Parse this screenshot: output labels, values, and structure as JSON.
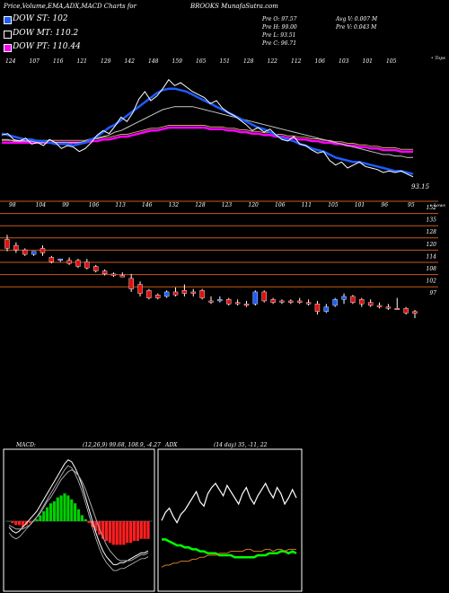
{
  "header": {
    "left_title": "Price,Volume,EMA,ADX,MACD Charts for",
    "center_title": "BROOKS MunafaSutra.com"
  },
  "legend": [
    {
      "label": "DOW ST: 102",
      "color": "#1e5cff"
    },
    {
      "label": "DOW MT: 110.2",
      "color": "#000000"
    },
    {
      "label": "DOW PT: 110.44",
      "color": "#ff00ff"
    }
  ],
  "quote": {
    "open": "Pre   O: 97.57",
    "high": "Pre   H: 99.00",
    "low": "Pre   L: 93.51",
    "close": "Pre   C: 96.71",
    "avg_vol": "Avg V: 0.007 M",
    "pre_vol": "Pre   V: 0.043 M"
  },
  "chart_data": [
    {
      "type": "line",
      "name": "price-ema-panel",
      "top_tick_labels": [
        "124",
        "107",
        "116",
        "121",
        "129",
        "142",
        "148",
        "159",
        "165",
        "151",
        "128",
        "122",
        "112",
        "106",
        "103",
        "101",
        "105"
      ],
      "bottom_tick_labels": [
        "98",
        "104",
        "99",
        "106",
        "113",
        "146",
        "132",
        "128",
        "123",
        "120",
        "106",
        "111",
        "105",
        "101",
        "96",
        "95"
      ],
      "corner_top": "• Tops",
      "corner_bottom": "• Lows",
      "last_price_label": "93.15",
      "close": [
        121,
        122,
        118,
        117,
        119,
        115,
        116,
        114,
        118,
        116,
        112,
        114,
        113,
        110,
        112,
        116,
        121,
        124,
        122,
        127,
        133,
        130,
        136,
        145,
        150,
        144,
        147,
        152,
        158,
        154,
        156,
        153,
        150,
        148,
        146,
        142,
        144,
        139,
        136,
        134,
        131,
        128,
        124,
        126,
        123,
        125,
        121,
        118,
        117,
        120,
        115,
        114,
        111,
        109,
        110,
        104,
        101,
        103,
        99,
        101,
        103,
        100,
        99,
        98,
        96,
        97,
        96,
        97,
        95,
        93.15
      ],
      "ema_short": [
        122,
        121,
        120,
        119,
        118,
        118,
        117,
        117,
        116,
        115,
        115,
        115,
        114,
        115,
        116,
        118,
        120,
        123,
        126,
        128,
        131,
        134,
        137,
        140,
        143,
        146,
        149,
        151,
        152,
        152,
        151,
        150,
        148,
        146,
        144,
        142,
        140,
        138,
        136,
        134,
        132,
        130,
        128,
        126,
        125,
        123,
        121,
        119,
        118,
        117,
        115,
        114,
        112,
        111,
        110,
        108,
        106,
        105,
        104,
        103,
        103,
        102,
        101,
        100,
        99,
        98,
        97,
        97,
        96,
        95
      ],
      "ema_mid": [
        118,
        118,
        117,
        117,
        117,
        117,
        116,
        116,
        116,
        116,
        116,
        116,
        116,
        116,
        117,
        118,
        119,
        120,
        121,
        123,
        124,
        126,
        128,
        130,
        132,
        134,
        136,
        138,
        139,
        140,
        140,
        140,
        140,
        139,
        138,
        137,
        136,
        135,
        134,
        133,
        132,
        131,
        130,
        129,
        128,
        127,
        126,
        125,
        124,
        123,
        122,
        121,
        120,
        119,
        118,
        117,
        116,
        115,
        114,
        113,
        112,
        111,
        110,
        109,
        108,
        108,
        107,
        107,
        106,
        106
      ],
      "ema_long": [
        116,
        116,
        116,
        116,
        116,
        116,
        116,
        116,
        116,
        116,
        116,
        116,
        116,
        116,
        116,
        117,
        117,
        118,
        118,
        119,
        120,
        120,
        121,
        122,
        123,
        124,
        124,
        125,
        126,
        126,
        126,
        126,
        126,
        126,
        126,
        125,
        125,
        125,
        124,
        124,
        123,
        123,
        122,
        122,
        121,
        121,
        120,
        120,
        119,
        119,
        118,
        118,
        117,
        117,
        116,
        116,
        115,
        115,
        114,
        114,
        113,
        113,
        112,
        112,
        111,
        111,
        111,
        110,
        110,
        110
      ]
    },
    {
      "type": "candlestick",
      "name": "candle-panel",
      "ylim": [
        93,
        160
      ],
      "price_levels": [
        "152",
        "135",
        "128",
        "120",
        "114",
        "108",
        "102",
        "97"
      ],
      "candles": [
        {
          "o": 146,
          "h": 149,
          "l": 138,
          "c": 140,
          "up": false
        },
        {
          "o": 142,
          "h": 144,
          "l": 137,
          "c": 139,
          "up": false
        },
        {
          "o": 139,
          "h": 140,
          "l": 135,
          "c": 136,
          "up": false
        },
        {
          "o": 136,
          "h": 138,
          "l": 135,
          "c": 138,
          "up": true
        },
        {
          "o": 140,
          "h": 142,
          "l": 135,
          "c": 137,
          "up": false
        },
        {
          "o": 134,
          "h": 135,
          "l": 130,
          "c": 131,
          "up": false
        },
        {
          "o": 132,
          "h": 133,
          "l": 131,
          "c": 133,
          "up": true
        },
        {
          "o": 132,
          "h": 134,
          "l": 129,
          "c": 130,
          "up": false
        },
        {
          "o": 132,
          "h": 133,
          "l": 127,
          "c": 128,
          "up": false
        },
        {
          "o": 131,
          "h": 133,
          "l": 126,
          "c": 127,
          "up": false
        },
        {
          "o": 128,
          "h": 129,
          "l": 124,
          "c": 125,
          "up": false
        },
        {
          "o": 125,
          "h": 126,
          "l": 122,
          "c": 123,
          "up": false
        },
        {
          "o": 123,
          "h": 124,
          "l": 121,
          "c": 122,
          "up": false
        },
        {
          "o": 122,
          "h": 124,
          "l": 121,
          "c": 121,
          "up": false
        },
        {
          "o": 120,
          "h": 123,
          "l": 111,
          "c": 113,
          "up": false
        },
        {
          "o": 116,
          "h": 118,
          "l": 108,
          "c": 110,
          "up": false
        },
        {
          "o": 112,
          "h": 113,
          "l": 106,
          "c": 107,
          "up": false
        },
        {
          "o": 109,
          "h": 110,
          "l": 106,
          "c": 107,
          "up": false
        },
        {
          "o": 108,
          "h": 112,
          "l": 107,
          "c": 111,
          "up": true
        },
        {
          "o": 111,
          "h": 114,
          "l": 108,
          "c": 109,
          "up": false
        },
        {
          "o": 112,
          "h": 116,
          "l": 108,
          "c": 110,
          "up": false
        },
        {
          "o": 111,
          "h": 113,
          "l": 108,
          "c": 110,
          "up": false
        },
        {
          "o": 112,
          "h": 113,
          "l": 106,
          "c": 107,
          "up": false
        },
        {
          "o": 105,
          "h": 108,
          "l": 103,
          "c": 105,
          "up": false
        },
        {
          "o": 105,
          "h": 108,
          "l": 104,
          "c": 106,
          "up": true
        },
        {
          "o": 106,
          "h": 107,
          "l": 102,
          "c": 103,
          "up": false
        },
        {
          "o": 104,
          "h": 106,
          "l": 102,
          "c": 104,
          "up": false
        },
        {
          "o": 103,
          "h": 105,
          "l": 101,
          "c": 102,
          "up": false
        },
        {
          "o": 103,
          "h": 112,
          "l": 102,
          "c": 111,
          "up": true
        },
        {
          "o": 111,
          "h": 112,
          "l": 104,
          "c": 105,
          "up": false
        },
        {
          "o": 106,
          "h": 107,
          "l": 103,
          "c": 104,
          "up": false
        },
        {
          "o": 105,
          "h": 106,
          "l": 103,
          "c": 105,
          "up": false
        },
        {
          "o": 105,
          "h": 106,
          "l": 103,
          "c": 104,
          "up": false
        },
        {
          "o": 105,
          "h": 107,
          "l": 103,
          "c": 104,
          "up": false
        },
        {
          "o": 104,
          "h": 106,
          "l": 102,
          "c": 103,
          "up": false
        },
        {
          "o": 103,
          "h": 105,
          "l": 96,
          "c": 98,
          "up": false
        },
        {
          "o": 98,
          "h": 103,
          "l": 97,
          "c": 101,
          "up": true
        },
        {
          "o": 102,
          "h": 107,
          "l": 101,
          "c": 106,
          "up": true
        },
        {
          "o": 106,
          "h": 110,
          "l": 103,
          "c": 108,
          "up": true
        },
        {
          "o": 108,
          "h": 109,
          "l": 103,
          "c": 104,
          "up": false
        },
        {
          "o": 106,
          "h": 107,
          "l": 101,
          "c": 103,
          "up": false
        },
        {
          "o": 104,
          "h": 106,
          "l": 101,
          "c": 102,
          "up": false
        },
        {
          "o": 102,
          "h": 104,
          "l": 100,
          "c": 101,
          "up": false
        },
        {
          "o": 101,
          "h": 103,
          "l": 99,
          "c": 100,
          "up": false
        },
        {
          "o": 100,
          "h": 107,
          "l": 99,
          "c": 100,
          "up": false
        },
        {
          "o": 100,
          "h": 101,
          "l": 96,
          "c": 97,
          "up": false
        },
        {
          "o": 98,
          "h": 99,
          "l": 93.5,
          "c": 96.7,
          "up": false
        }
      ]
    },
    {
      "type": "bar",
      "name": "macd-panel",
      "label": "MACD:",
      "params": "(12,26,9) 99.68, 108.9, -4.27",
      "histogram": [
        0,
        -1,
        -2,
        -2,
        -3,
        -2,
        -1,
        0,
        1,
        3,
        5,
        7,
        9,
        10,
        12,
        13,
        14,
        13,
        11,
        9,
        6,
        3,
        1,
        -1,
        -3,
        -5,
        -7,
        -9,
        -10,
        -11,
        -12,
        -12,
        -12,
        -12,
        -11,
        -11,
        -10,
        -10,
        -9,
        -9,
        -9
      ],
      "macd_line": [
        -3,
        -5,
        -6,
        -5,
        -3,
        -1,
        1,
        3,
        5,
        8,
        11,
        14,
        17,
        20,
        23,
        26,
        29,
        31,
        30,
        27,
        23,
        18,
        12,
        6,
        0,
        -6,
        -11,
        -15,
        -18,
        -20,
        -22,
        -22,
        -21,
        -21,
        -20,
        -19,
        -18,
        -17,
        -16,
        -16,
        -15
      ],
      "signal_line": [
        -2,
        -3,
        -4,
        -4,
        -4,
        -3,
        -2,
        0,
        2,
        4,
        7,
        10,
        12,
        15,
        18,
        21,
        23,
        25,
        26,
        25,
        23,
        20,
        16,
        11,
        6,
        1,
        -4,
        -8,
        -12,
        -15,
        -17,
        -19,
        -20,
        -20,
        -20,
        -20,
        -19,
        -18,
        -17,
        -17,
        -16
      ]
    },
    {
      "type": "line",
      "name": "adx-panel",
      "label": "ADX",
      "params": "(14 day) 35, -11, 22",
      "adx": [
        22,
        26,
        28,
        24,
        21,
        25,
        27,
        30,
        33,
        36,
        31,
        29,
        35,
        38,
        40,
        37,
        34,
        39,
        36,
        33,
        30,
        35,
        38,
        33,
        30,
        34,
        37,
        40,
        36,
        33,
        38,
        35,
        30,
        33,
        37,
        33
      ],
      "plus_di": [
        18,
        18,
        17,
        16,
        15,
        15,
        14,
        14,
        13,
        13,
        12,
        12,
        11,
        11,
        11,
        10,
        10,
        10,
        10,
        9,
        9,
        9,
        9,
        9,
        9,
        10,
        10,
        10,
        11,
        11,
        11,
        12,
        12,
        11,
        12,
        11
      ],
      "minus_di": [
        4,
        5,
        5,
        6,
        6,
        7,
        7,
        7,
        8,
        8,
        9,
        9,
        10,
        10,
        10,
        11,
        11,
        11,
        12,
        12,
        12,
        12,
        13,
        13,
        12,
        12,
        12,
        13,
        13,
        12,
        13,
        13,
        12,
        13,
        13,
        13
      ]
    }
  ],
  "colors": {
    "background": "#000000",
    "price_line": "#ffffff",
    "ema_short": "#1e5cff",
    "ema_mid": "#c8c8c8",
    "ema_long": "#ff00ff",
    "ema_extra": "#d2a06a",
    "candle_up": "#1e5cff",
    "candle_down": "#e01010",
    "level_line": "#c85a1e",
    "macd_pos": "#00d000",
    "macd_neg": "#ff2020",
    "adx_line": "#ffffff",
    "adx_green": "#00ff00",
    "adx_orange": "#d27a2a"
  }
}
